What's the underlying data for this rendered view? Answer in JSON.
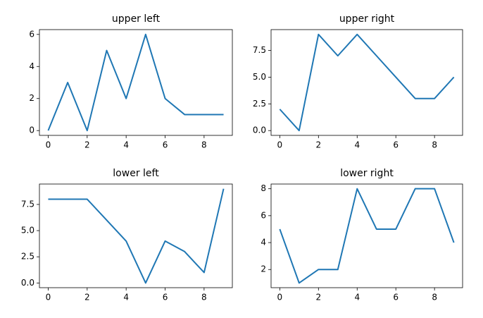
{
  "chart_data": [
    {
      "type": "line",
      "title": "upper left",
      "x": [
        0,
        1,
        2,
        3,
        4,
        5,
        6,
        7,
        8,
        9
      ],
      "values": [
        0,
        3,
        0,
        5,
        2,
        6,
        2,
        1,
        1,
        1
      ],
      "color": "#1f77b4",
      "xlim": [
        -0.45,
        9.45
      ],
      "xticks": [
        0,
        2,
        4,
        6,
        8
      ],
      "ylim": [
        -0.3,
        6.3
      ],
      "yticks": [
        0,
        2,
        4,
        6
      ]
    },
    {
      "type": "line",
      "title": "upper right",
      "x": [
        0,
        1,
        2,
        3,
        4,
        5,
        6,
        7,
        8,
        9
      ],
      "values": [
        2,
        0,
        9,
        7,
        9,
        7,
        5,
        3,
        3,
        5
      ],
      "color": "#1f77b4",
      "xlim": [
        -0.45,
        9.45
      ],
      "xticks": [
        0,
        2,
        4,
        6,
        8
      ],
      "ylim": [
        -0.45,
        9.45
      ],
      "yticks": [
        {
          "value": 0,
          "label": "0.0"
        },
        2.5,
        {
          "value": 5,
          "label": "5.0"
        },
        7.5
      ]
    },
    {
      "type": "line",
      "title": "lower left",
      "x": [
        0,
        1,
        2,
        3,
        4,
        5,
        6,
        7,
        8,
        9
      ],
      "values": [
        8,
        8,
        8,
        6,
        4,
        0,
        4,
        3,
        1,
        9
      ],
      "color": "#1f77b4",
      "xlim": [
        -0.45,
        9.45
      ],
      "xticks": [
        0,
        2,
        4,
        6,
        8
      ],
      "ylim": [
        -0.45,
        9.45
      ],
      "yticks": [
        {
          "value": 0,
          "label": "0.0"
        },
        2.5,
        {
          "value": 5,
          "label": "5.0"
        },
        7.5
      ]
    },
    {
      "type": "line",
      "title": "lower right",
      "x": [
        0,
        1,
        2,
        3,
        4,
        5,
        6,
        7,
        8,
        9
      ],
      "values": [
        5,
        1,
        2,
        2,
        8,
        5,
        5,
        8,
        8,
        4
      ],
      "color": "#1f77b4",
      "xlim": [
        -0.45,
        9.45
      ],
      "xticks": [
        0,
        2,
        4,
        6,
        8
      ],
      "ylim": [
        0.65,
        8.35
      ],
      "yticks": [
        2,
        4,
        6,
        8
      ]
    }
  ]
}
